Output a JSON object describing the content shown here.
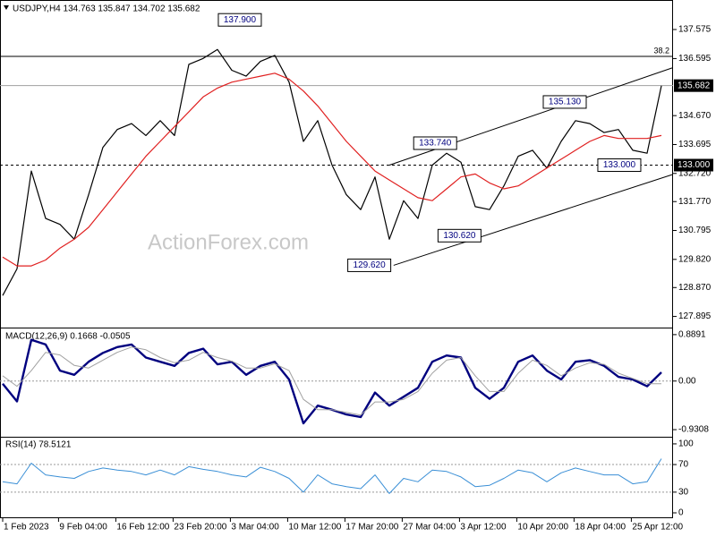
{
  "chart_data": [
    {
      "type": "line",
      "title": "USDJPY,H4  134.763 135.847 134.702 135.682",
      "watermark": "ActionForex.com",
      "xlim": [
        0,
        46.75
      ],
      "ylim": [
        127.55,
        138.51
      ],
      "yticks": [
        137.575,
        136.595,
        {
          "value": 134.67,
          "label": "134.670"
        },
        133.695,
        {
          "value": 132.72,
          "label": "132.720"
        },
        {
          "value": 131.77,
          "label": "131.770"
        },
        130.795,
        {
          "value": 129.82,
          "label": "129.820"
        },
        {
          "value": 128.87,
          "label": "128.870"
        },
        127.895
      ],
      "series": [
        {
          "color": "#000000",
          "width": 1.2,
          "values": [
            128.6,
            129.5,
            132.8,
            131.2,
            131.0,
            130.5,
            132.0,
            133.6,
            134.2,
            134.4,
            134.0,
            134.5,
            134.0,
            136.4,
            136.6,
            136.9,
            136.2,
            136.0,
            136.5,
            136.7,
            135.8,
            133.8,
            134.5,
            133.0,
            132.0,
            131.5,
            132.6,
            130.5,
            131.8,
            131.2,
            133.0,
            133.4,
            133.1,
            131.6,
            131.5,
            132.3,
            133.3,
            133.5,
            132.9,
            133.8,
            134.5,
            134.4,
            134.1,
            134.2,
            133.5,
            133.4,
            135.68
          ]
        },
        {
          "color": "#e02020",
          "width": 1.2,
          "values": [
            129.9,
            129.6,
            129.6,
            129.8,
            130.2,
            130.5,
            130.9,
            131.5,
            132.1,
            132.7,
            133.3,
            133.8,
            134.3,
            134.8,
            135.3,
            135.6,
            135.8,
            135.9,
            136.0,
            136.1,
            135.9,
            135.5,
            135.0,
            134.4,
            133.8,
            133.3,
            132.8,
            132.5,
            132.2,
            131.9,
            131.8,
            132.2,
            132.6,
            132.7,
            132.4,
            132.2,
            132.3,
            132.6,
            132.9,
            133.2,
            133.5,
            133.8,
            134.0,
            133.9,
            133.9,
            133.9,
            134.0
          ]
        }
      ],
      "price_lines": [
        {
          "value": 135.682,
          "label": "135.682",
          "color": "#a0a0a0",
          "dash": false
        },
        {
          "value": 133.0,
          "label": "133.000",
          "color": "#000000",
          "dash": true
        }
      ],
      "levels": [
        {
          "value": 136.67,
          "label": "38.2"
        }
      ],
      "trendlines": [
        {
          "from": [
            27,
            133.0
          ],
          "to": [
            46.75,
            136.28
          ]
        },
        {
          "from": [
            27.3,
            129.62
          ],
          "to": [
            46.75,
            132.68
          ]
        }
      ],
      "annotations": [
        {
          "x": 18.06,
          "value": 137.9,
          "label": "137.900"
        },
        {
          "x": 40.75,
          "value": 135.13,
          "label": "135.130"
        },
        {
          "x": 31.7,
          "value": 133.74,
          "label": "133.740"
        },
        {
          "x": 44.56,
          "value": 133.0,
          "label": "133.000"
        },
        {
          "x": 33.4,
          "value": 130.62,
          "label": "130.620"
        },
        {
          "x": 27.1,
          "value": 129.62,
          "label": "129.620"
        }
      ]
    },
    {
      "type": "line",
      "title": "MACD(12,26,9) 0.1668 -0.0505",
      "xlim": [
        0,
        46.75
      ],
      "ylim": [
        -1.05,
        0.99
      ],
      "yticks": [
        0.8891,
        {
          "value": 0,
          "label": "0.00"
        },
        -0.9308
      ],
      "levels": [
        {
          "value": 0
        }
      ],
      "series": [
        {
          "color": "#00007f",
          "width": 2.4,
          "values": [
            -0.05,
            -0.39,
            0.79,
            0.7,
            0.2,
            0.12,
            0.37,
            0.54,
            0.65,
            0.7,
            0.45,
            0.37,
            0.29,
            0.54,
            0.62,
            0.32,
            0.37,
            0.12,
            0.29,
            0.37,
            0.03,
            -0.81,
            -0.47,
            -0.55,
            -0.64,
            -0.69,
            -0.22,
            -0.47,
            -0.3,
            -0.13,
            0.37,
            0.49,
            0.45,
            -0.13,
            -0.34,
            -0.13,
            0.37,
            0.49,
            0.2,
            0.03,
            0.37,
            0.4,
            0.29,
            0.08,
            0.03,
            -0.1,
            0.1668
          ]
        },
        {
          "color": "#a0a0a0",
          "width": 1,
          "values": [
            0.1,
            -0.1,
            0.2,
            0.55,
            0.5,
            0.3,
            0.25,
            0.4,
            0.55,
            0.65,
            0.6,
            0.45,
            0.35,
            0.4,
            0.55,
            0.45,
            0.38,
            0.25,
            0.25,
            0.33,
            0.2,
            -0.35,
            -0.55,
            -0.55,
            -0.6,
            -0.65,
            -0.4,
            -0.4,
            -0.35,
            -0.2,
            0.15,
            0.4,
            0.45,
            0.1,
            -0.2,
            -0.2,
            0.15,
            0.4,
            0.3,
            0.1,
            0.25,
            0.35,
            0.32,
            0.15,
            0.05,
            -0.05,
            -0.0505
          ]
        }
      ]
    },
    {
      "type": "line",
      "title": "RSI(14) 78.5121",
      "xlim": [
        0,
        46.75
      ],
      "ylim": [
        -6.5,
        109
      ],
      "yticks": [
        100,
        70,
        30,
        0
      ],
      "levels": [
        {
          "value": 70
        },
        {
          "value": 30
        }
      ],
      "series": [
        {
          "color": "#3a8fd6",
          "width": 1,
          "values": [
            45,
            42,
            72,
            55,
            52,
            50,
            60,
            65,
            62,
            60,
            55,
            62,
            55,
            67,
            63,
            60,
            55,
            52,
            66,
            60,
            50,
            30,
            55,
            42,
            38,
            35,
            55,
            28,
            50,
            45,
            62,
            60,
            52,
            38,
            40,
            50,
            62,
            58,
            45,
            58,
            65,
            60,
            55,
            55,
            42,
            45,
            78.5121
          ]
        }
      ],
      "xticks": [
        {
          "value": 0,
          "label": "1 Feb 2023"
        },
        {
          "value": 3.9,
          "label": "9 Feb 04:00"
        },
        {
          "value": 7.9,
          "label": "16 Feb 12:00"
        },
        {
          "value": 11.9,
          "label": "23 Feb 20:00"
        },
        {
          "value": 15.9,
          "label": "3 Mar 04:00"
        },
        {
          "value": 19.9,
          "label": "10 Mar 12:00"
        },
        {
          "value": 23.9,
          "label": "17 Mar 20:00"
        },
        {
          "value": 27.9,
          "label": "27 Mar 04:00"
        },
        {
          "value": 31.9,
          "label": "3 Apr 12:00"
        },
        {
          "value": 35.9,
          "label": "10 Apr 20:00"
        },
        {
          "value": 39.9,
          "label": "18 Apr 04:00"
        },
        {
          "value": 43.9,
          "label": "25 Apr 12:00"
        }
      ]
    }
  ]
}
